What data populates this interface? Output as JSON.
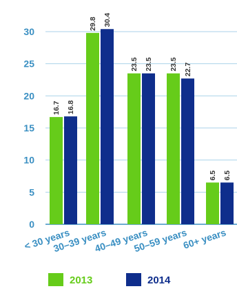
{
  "chart_data": {
    "type": "bar",
    "title": "",
    "xlabel": "",
    "ylabel": "",
    "categories": [
      "< 30 years",
      "30–39 years",
      "40–49 years",
      "50–59 years",
      "60+ years"
    ],
    "series": [
      {
        "name": "2013",
        "values": [
          16.7,
          29.8,
          23.5,
          23.5,
          6.5
        ],
        "color": "#66cc1a"
      },
      {
        "name": "2014",
        "values": [
          16.8,
          30.4,
          23.5,
          22.7,
          6.5
        ],
        "color": "#0f2e8c"
      }
    ],
    "ylim": [
      0,
      32
    ],
    "yticks": [
      0,
      5,
      10,
      15,
      20,
      25,
      30
    ],
    "data_labels": true,
    "grid": true,
    "legend_position": "bottom",
    "colors": {
      "axis_text": "#3a8fc2",
      "grid": "#a9d2ea",
      "axis": "#3a8fc2"
    }
  }
}
